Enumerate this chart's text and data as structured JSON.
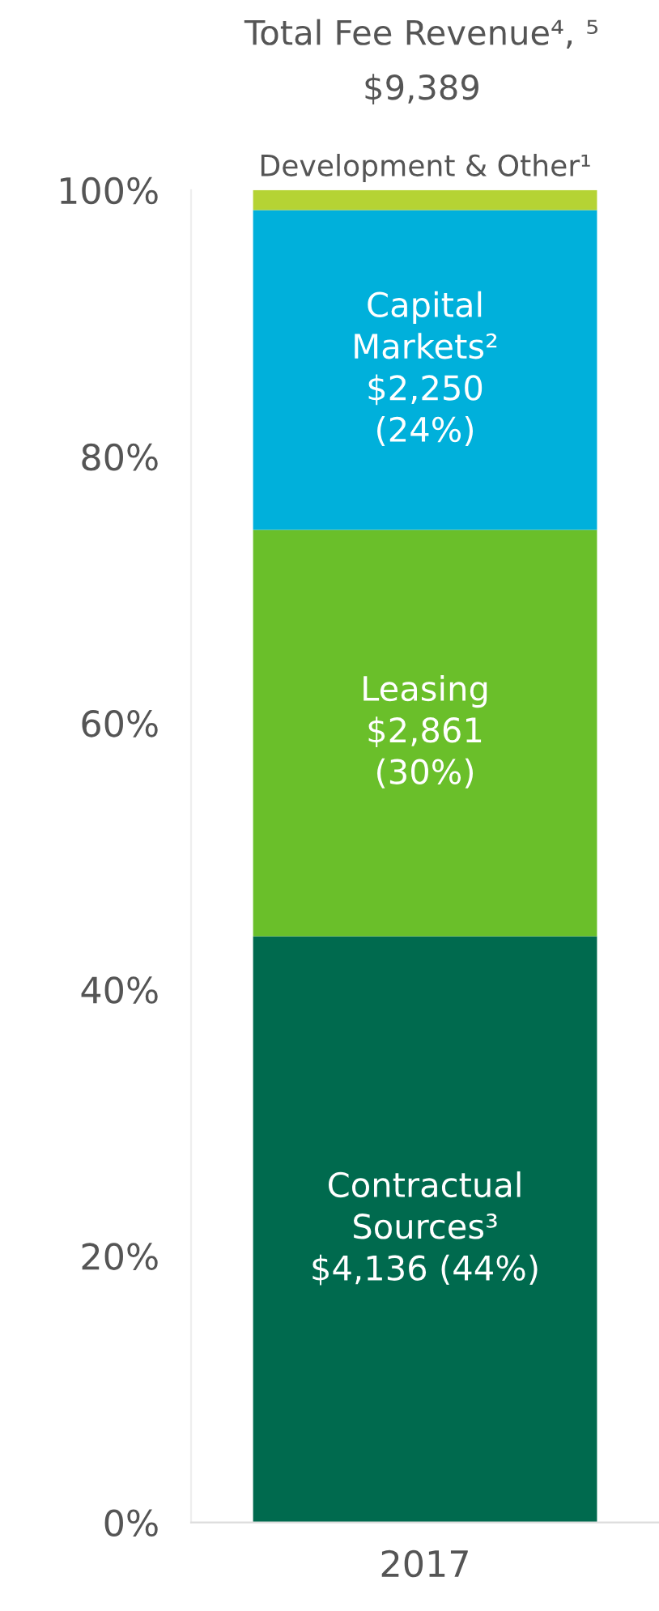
{
  "chart_data": {
    "type": "bar",
    "stacked": true,
    "title": "Total Fee Revenue⁴, ⁵",
    "subtitle": "$9,389",
    "categories": [
      "2017"
    ],
    "series": [
      {
        "name": "Contractual\nSources³",
        "color": "#006a4e",
        "values": [
          44
        ],
        "value_labels": [
          "$4,136 (44%)"
        ]
      },
      {
        "name": "Leasing",
        "color": "#6abf2a",
        "values": [
          30.5
        ],
        "value_labels": [
          "$2,861\n(30%)"
        ]
      },
      {
        "name": "Capital\nMarkets²",
        "color": "#00b0db",
        "values": [
          24
        ],
        "value_labels": [
          "$2,250\n(24%)"
        ]
      },
      {
        "name": "Development & Other¹",
        "color": "#b5d334",
        "values": [
          1.5
        ]
      }
    ],
    "ylim": [
      0,
      100
    ],
    "yticks": [
      {
        "value": 0,
        "label": "0%"
      },
      {
        "value": 20,
        "label": "20%"
      },
      {
        "value": 40,
        "label": "40%"
      },
      {
        "value": 60,
        "label": "60%"
      },
      {
        "value": 80,
        "label": "80%"
      },
      {
        "value": 100,
        "label": "100%"
      }
    ],
    "grid": false,
    "legend": false
  }
}
